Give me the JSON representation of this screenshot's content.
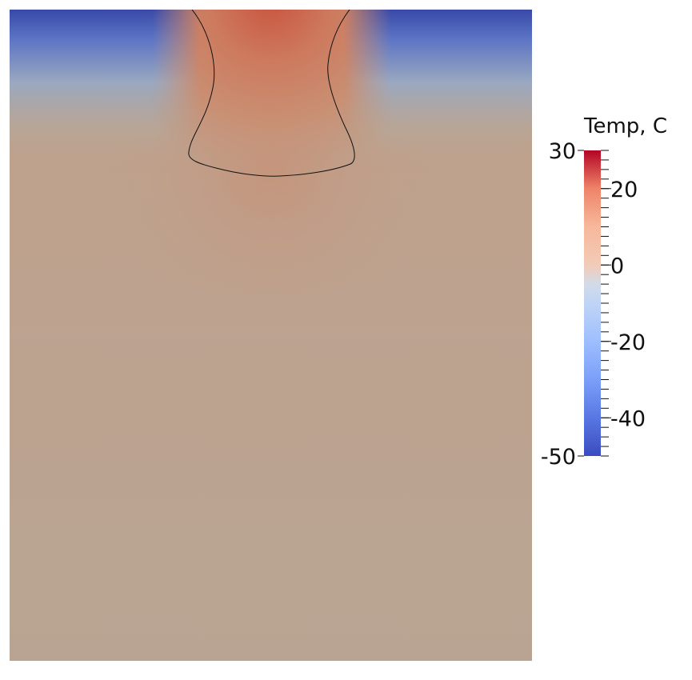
{
  "chart_data": {
    "type": "heatmap",
    "title": "",
    "colorbar": {
      "title": "Temp, C",
      "min": -50,
      "max": 30,
      "range_labels": [
        "30",
        "-50"
      ],
      "tick_values": [
        20,
        0,
        -20,
        -40
      ],
      "tick_labels": [
        "20",
        "0",
        "-20",
        "-40"
      ],
      "minor_tick_step": 2.5,
      "colormap": "cool-to-warm",
      "color_stops": [
        {
          "value": -50,
          "color": "#3b4cc0"
        },
        {
          "value": -40,
          "color": "#5977e3"
        },
        {
          "value": -30,
          "color": "#7b9ff9"
        },
        {
          "value": -20,
          "color": "#9ebeff"
        },
        {
          "value": -10,
          "color": "#c0d4f5"
        },
        {
          "value": -5,
          "color": "#d2dbe8"
        },
        {
          "value": 0,
          "color": "#f2cbb7"
        },
        {
          "value": 10,
          "color": "#f7b89c"
        },
        {
          "value": 20,
          "color": "#ee8468"
        },
        {
          "value": 30,
          "color": "#b40426"
        }
      ]
    },
    "field": {
      "description_values": {
        "top_edge_outer": -50,
        "top_center": 22,
        "mid_region": 8,
        "bottom_region": 4
      },
      "contour_level": 0
    }
  }
}
